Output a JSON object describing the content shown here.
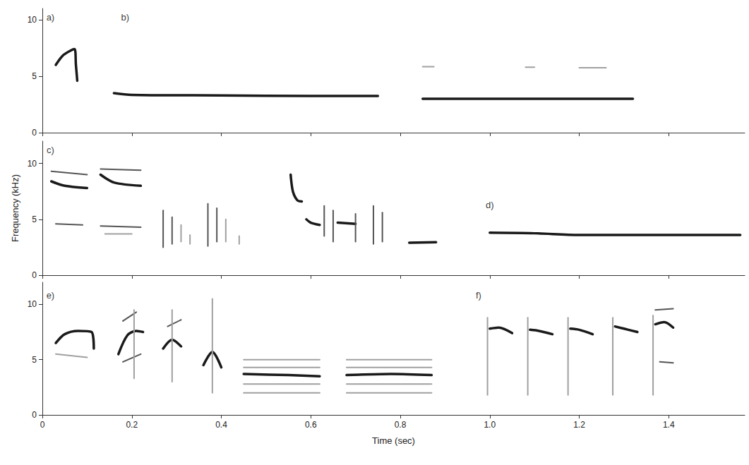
{
  "chart_data": [
    {
      "type": "line",
      "xlim": [
        0,
        1.57
      ],
      "xticks": [
        0,
        0.2,
        0.4,
        0.6,
        0.8,
        {
          "value": 1,
          "label": "1.0"
        },
        1.2,
        1.4
      ],
      "ylim": [
        0,
        11
      ],
      "yticks": [
        0,
        5,
        10
      ],
      "grid": false,
      "tick_labels": "y",
      "color": "#1a1a1a",
      "annotations": [
        {
          "text": "a)",
          "x": 0.018,
          "y": 10.2
        },
        {
          "text": "b)",
          "x": 0.185,
          "y": 10.2
        }
      ],
      "series": [
        {
          "values": [
            [
              0.03,
              6.0
            ],
            [
              0.045,
              6.8
            ],
            [
              0.06,
              7.2
            ],
            [
              0.072,
              7.4
            ],
            [
              0.075,
              6.0
            ],
            [
              0.078,
              4.6
            ]
          ]
        },
        {
          "values": [
            [
              0.16,
              3.5
            ],
            [
              0.2,
              3.35
            ],
            [
              0.4,
              3.3
            ],
            [
              0.6,
              3.25
            ],
            [
              0.75,
              3.25
            ]
          ]
        },
        {
          "values": [
            [
              0.85,
              3.0
            ],
            [
              1.0,
              3.0
            ],
            [
              1.15,
              3.0
            ],
            [
              1.32,
              3.0
            ]
          ]
        },
        {
          "color": "#a0a0a0",
          "values": [
            [
              0.85,
              5.85
            ],
            [
              0.875,
              5.85
            ]
          ]
        },
        {
          "color": "#a0a0a0",
          "values": [
            [
              1.08,
              5.8
            ],
            [
              1.1,
              5.8
            ]
          ]
        },
        {
          "color": "#a0a0a0",
          "values": [
            [
              1.2,
              5.75
            ],
            [
              1.26,
              5.75
            ]
          ]
        }
      ]
    },
    {
      "type": "line",
      "xlim": [
        0,
        1.57
      ],
      "xticks": [
        0,
        0.2,
        0.4,
        0.6,
        0.8,
        {
          "value": 1,
          "label": "1.0"
        },
        1.2,
        1.4
      ],
      "ylim": [
        0,
        12
      ],
      "yticks": [
        0,
        5,
        10
      ],
      "grid": false,
      "tick_labels": "y",
      "color": "#1a1a1a",
      "ylabel": "Frequency (kHz)",
      "annotations": [
        {
          "text": "c)",
          "x": 0.018,
          "y": 11.2
        },
        {
          "text": "d)",
          "x": 1.0,
          "y": 6.3
        }
      ],
      "series": [
        {
          "values": [
            [
              0.02,
              8.4
            ],
            [
              0.05,
              8.0
            ],
            [
              0.1,
              7.8
            ]
          ]
        },
        {
          "color": "#555555",
          "values": [
            [
              0.02,
              9.3
            ],
            [
              0.1,
              9.0
            ]
          ]
        },
        {
          "color": "#555555",
          "values": [
            [
              0.03,
              4.6
            ],
            [
              0.09,
              4.5
            ]
          ]
        },
        {
          "values": [
            [
              0.13,
              9.0
            ],
            [
              0.16,
              8.3
            ],
            [
              0.22,
              8.0
            ]
          ]
        },
        {
          "color": "#555555",
          "values": [
            [
              0.13,
              9.5
            ],
            [
              0.22,
              9.4
            ]
          ]
        },
        {
          "color": "#555555",
          "values": [
            [
              0.13,
              4.4
            ],
            [
              0.22,
              4.3
            ]
          ]
        },
        {
          "color": "#a0a0a0",
          "values": [
            [
              0.14,
              3.7
            ],
            [
              0.2,
              3.7
            ]
          ]
        },
        {
          "color": "#555555",
          "values": [
            [
              0.27,
              2.5
            ],
            [
              0.27,
              5.8
            ]
          ]
        },
        {
          "color": "#555555",
          "values": [
            [
              0.29,
              2.8
            ],
            [
              0.29,
              5.2
            ]
          ]
        },
        {
          "color": "#a0a0a0",
          "values": [
            [
              0.31,
              3.0
            ],
            [
              0.31,
              4.5
            ]
          ]
        },
        {
          "color": "#a0a0a0",
          "values": [
            [
              0.33,
              2.8
            ],
            [
              0.33,
              3.6
            ]
          ]
        },
        {
          "color": "#555555",
          "values": [
            [
              0.37,
              2.6
            ],
            [
              0.37,
              6.4
            ]
          ]
        },
        {
          "color": "#555555",
          "values": [
            [
              0.39,
              3.0
            ],
            [
              0.39,
              6.0
            ]
          ]
        },
        {
          "color": "#a0a0a0",
          "values": [
            [
              0.41,
              3.0
            ],
            [
              0.41,
              5.0
            ]
          ]
        },
        {
          "color": "#a0a0a0",
          "values": [
            [
              0.44,
              2.8
            ],
            [
              0.44,
              3.5
            ]
          ]
        },
        {
          "values": [
            [
              0.555,
              9.0
            ],
            [
              0.56,
              7.5
            ],
            [
              0.57,
              6.7
            ],
            [
              0.58,
              6.6
            ]
          ]
        },
        {
          "values": [
            [
              0.59,
              5.0
            ],
            [
              0.6,
              4.7
            ],
            [
              0.62,
              4.5
            ]
          ]
        },
        {
          "color": "#555555",
          "values": [
            [
              0.63,
              3.5
            ],
            [
              0.63,
              6.2
            ]
          ]
        },
        {
          "color": "#555555",
          "values": [
            [
              0.65,
              3.0
            ],
            [
              0.65,
              5.8
            ]
          ]
        },
        {
          "values": [
            [
              0.66,
              4.7
            ],
            [
              0.7,
              4.6
            ]
          ]
        },
        {
          "color": "#555555",
          "values": [
            [
              0.7,
              3.0
            ],
            [
              0.7,
              5.5
            ]
          ]
        },
        {
          "color": "#555555",
          "values": [
            [
              0.74,
              2.8
            ],
            [
              0.74,
              6.2
            ]
          ]
        },
        {
          "color": "#555555",
          "values": [
            [
              0.76,
              3.0
            ],
            [
              0.76,
              5.6
            ]
          ]
        },
        {
          "values": [
            [
              0.82,
              2.9
            ],
            [
              0.88,
              2.95
            ]
          ]
        },
        {
          "values": [
            [
              1.0,
              3.8
            ],
            [
              1.1,
              3.75
            ],
            [
              1.2,
              3.6
            ],
            [
              1.4,
              3.6
            ],
            [
              1.56,
              3.6
            ]
          ]
        }
      ]
    },
    {
      "type": "line",
      "xlim": [
        0,
        1.57
      ],
      "xticks": [
        0,
        0.2,
        0.4,
        0.6,
        0.8,
        {
          "value": 1,
          "label": "1.0"
        },
        1.2,
        1.4
      ],
      "ylim": [
        0,
        12
      ],
      "yticks": [
        0,
        5,
        10
      ],
      "grid": false,
      "tick_labels": true,
      "color": "#1a1a1a",
      "xlabel": "Time (sec)",
      "annotations": [
        {
          "text": "e)",
          "x": 0.018,
          "y": 10.8
        },
        {
          "text": "f)",
          "x": 0.975,
          "y": 10.8
        }
      ],
      "series": [
        {
          "values": [
            [
              0.03,
              6.5
            ],
            [
              0.05,
              7.3
            ],
            [
              0.08,
              7.6
            ],
            [
              0.11,
              7.5
            ],
            [
              0.115,
              6.0
            ]
          ]
        },
        {
          "color": "#a0a0a0",
          "values": [
            [
              0.03,
              5.5
            ],
            [
              0.1,
              5.2
            ]
          ]
        },
        {
          "values": [
            [
              0.17,
              5.5
            ],
            [
              0.19,
              7.2
            ],
            [
              0.21,
              7.6
            ],
            [
              0.225,
              7.5
            ]
          ]
        },
        {
          "color": "#555555",
          "values": [
            [
              0.18,
              8.5
            ],
            [
              0.21,
              9.3
            ]
          ]
        },
        {
          "color": "#555555",
          "values": [
            [
              0.18,
              4.8
            ],
            [
              0.22,
              5.5
            ]
          ]
        },
        {
          "color": "#a0a0a0",
          "values": [
            [
              0.205,
              3.3
            ],
            [
              0.205,
              9.5
            ]
          ]
        },
        {
          "values": [
            [
              0.27,
              6.0
            ],
            [
              0.29,
              6.8
            ],
            [
              0.31,
              6.2
            ]
          ]
        },
        {
          "color": "#555555",
          "values": [
            [
              0.28,
              8.0
            ],
            [
              0.31,
              8.6
            ]
          ]
        },
        {
          "color": "#a0a0a0",
          "values": [
            [
              0.29,
              3.0
            ],
            [
              0.29,
              9.5
            ]
          ]
        },
        {
          "values": [
            [
              0.36,
              4.5
            ],
            [
              0.38,
              5.7
            ],
            [
              0.4,
              4.3
            ]
          ]
        },
        {
          "color": "#a0a0a0",
          "values": [
            [
              0.38,
              2.0
            ],
            [
              0.38,
              10.5
            ]
          ]
        },
        {
          "values": [
            [
              0.45,
              3.7
            ],
            [
              0.55,
              3.6
            ],
            [
              0.62,
              3.5
            ]
          ]
        },
        {
          "color": "#a0a0a0",
          "values": [
            [
              0.45,
              5.0
            ],
            [
              0.62,
              5.0
            ]
          ]
        },
        {
          "color": "#a0a0a0",
          "values": [
            [
              0.45,
              4.3
            ],
            [
              0.62,
              4.3
            ]
          ]
        },
        {
          "color": "#a0a0a0",
          "values": [
            [
              0.45,
              2.8
            ],
            [
              0.62,
              2.8
            ]
          ]
        },
        {
          "color": "#a0a0a0",
          "values": [
            [
              0.45,
              2.0
            ],
            [
              0.62,
              2.0
            ]
          ]
        },
        {
          "values": [
            [
              0.68,
              3.6
            ],
            [
              0.78,
              3.7
            ],
            [
              0.87,
              3.6
            ]
          ]
        },
        {
          "color": "#a0a0a0",
          "values": [
            [
              0.68,
              5.0
            ],
            [
              0.87,
              5.0
            ]
          ]
        },
        {
          "color": "#a0a0a0",
          "values": [
            [
              0.68,
              4.3
            ],
            [
              0.87,
              4.3
            ]
          ]
        },
        {
          "color": "#a0a0a0",
          "values": [
            [
              0.68,
              2.8
            ],
            [
              0.87,
              2.8
            ]
          ]
        },
        {
          "color": "#a0a0a0",
          "values": [
            [
              0.68,
              2.0
            ],
            [
              0.87,
              2.0
            ]
          ]
        },
        {
          "color": "#a0a0a0",
          "values": [
            [
              0.995,
              1.8
            ],
            [
              0.995,
              8.8
            ]
          ]
        },
        {
          "values": [
            [
              1.0,
              7.8
            ],
            [
              1.02,
              7.9
            ],
            [
              1.05,
              7.4
            ]
          ]
        },
        {
          "color": "#a0a0a0",
          "values": [
            [
              1.085,
              1.8
            ],
            [
              1.085,
              8.8
            ]
          ]
        },
        {
          "values": [
            [
              1.09,
              7.7
            ],
            [
              1.11,
              7.6
            ],
            [
              1.14,
              7.3
            ]
          ]
        },
        {
          "color": "#a0a0a0",
          "values": [
            [
              1.175,
              1.8
            ],
            [
              1.175,
              8.8
            ]
          ]
        },
        {
          "values": [
            [
              1.18,
              7.8
            ],
            [
              1.2,
              7.7
            ],
            [
              1.23,
              7.3
            ]
          ]
        },
        {
          "color": "#a0a0a0",
          "values": [
            [
              1.275,
              1.8
            ],
            [
              1.275,
              8.8
            ]
          ]
        },
        {
          "values": [
            [
              1.28,
              8.0
            ],
            [
              1.3,
              7.8
            ],
            [
              1.33,
              7.5
            ]
          ]
        },
        {
          "color": "#a0a0a0",
          "values": [
            [
              1.365,
              1.8
            ],
            [
              1.365,
              9.0
            ]
          ]
        },
        {
          "values": [
            [
              1.37,
              8.2
            ],
            [
              1.39,
              8.4
            ],
            [
              1.41,
              7.9
            ]
          ]
        },
        {
          "color": "#555555",
          "values": [
            [
              1.37,
              9.5
            ],
            [
              1.41,
              9.6
            ]
          ]
        },
        {
          "color": "#555555",
          "values": [
            [
              1.38,
              4.8
            ],
            [
              1.41,
              4.7
            ]
          ]
        }
      ]
    }
  ]
}
